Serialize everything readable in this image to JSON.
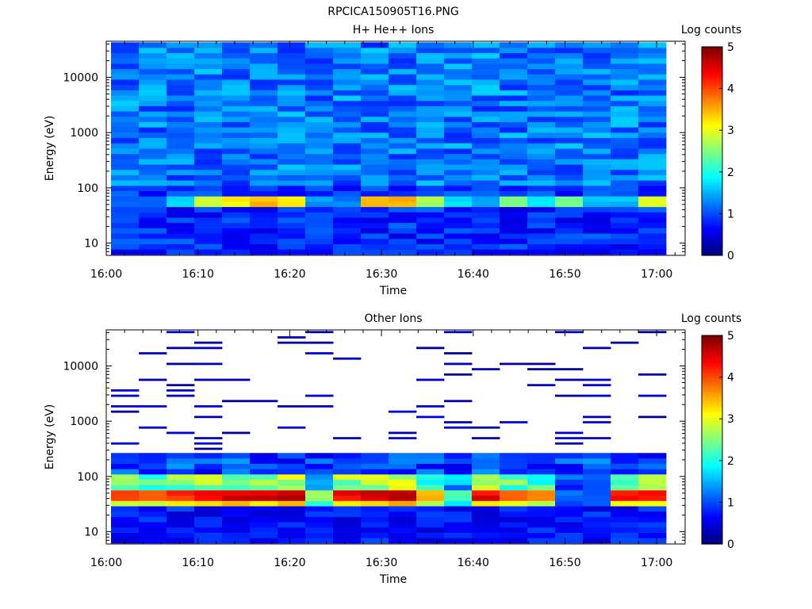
{
  "figure": {
    "title": "RPCICA150905T16.PNG"
  },
  "chart_data": [
    {
      "type": "heatmap",
      "title": "H+ He++ Ions",
      "xlabel": "Time",
      "ylabel": "Energy (eV)",
      "xticks": [
        "16:00",
        "16:10",
        "16:20",
        "16:30",
        "16:40",
        "16:50",
        "17:00"
      ],
      "xlim": [
        "16:00",
        "17:03"
      ],
      "yscale": "log",
      "yticks": [
        "10",
        "100",
        "1000",
        "10000"
      ],
      "ylim": [
        6,
        45000
      ],
      "colorbar": {
        "label": "Log counts",
        "ticks": [
          "0",
          "1",
          "2",
          "3",
          "4",
          "5"
        ],
        "range": [
          0,
          5
        ],
        "colormap": "jet"
      },
      "time_columns": 20,
      "energy_channels": 40,
      "peak_band": {
        "energy_range_eV": [
          42,
          65
        ],
        "levels": [
          1.2,
          1.1,
          1.6,
          2.9,
          3.2,
          3.4,
          3.2,
          1.4,
          1.3,
          3.5,
          3.6,
          2.7,
          1.8,
          1.5,
          2.6,
          1.9,
          2.4,
          1.6,
          1.5,
          3.1
        ]
      },
      "background_level": [
        0.4,
        1.6
      ],
      "empty_after": "17:03"
    },
    {
      "type": "heatmap",
      "title": "Other Ions",
      "xlabel": "Time",
      "ylabel": "Energy (eV)",
      "xticks": [
        "16:00",
        "16:10",
        "16:20",
        "16:30",
        "16:40",
        "16:50",
        "17:00"
      ],
      "xlim": [
        "16:00",
        "17:03"
      ],
      "yscale": "log",
      "yticks": [
        "10",
        "100",
        "1000",
        "10000"
      ],
      "ylim": [
        6,
        45000
      ],
      "colorbar": {
        "label": "Log counts",
        "ticks": [
          "0",
          "1",
          "2",
          "3",
          "4",
          "5"
        ],
        "range": [
          0,
          5
        ],
        "colormap": "jet"
      },
      "time_columns": 20,
      "energy_channels": 40,
      "peak_band": {
        "energy_range_eV": [
          35,
          60
        ],
        "levels": [
          4.1,
          3.8,
          4.2,
          4.4,
          4.5,
          4.6,
          4.7,
          2.6,
          4.4,
          4.6,
          4.8,
          3.4,
          2.3,
          4.4,
          4.0,
          3.8,
          1.2,
          1.0,
          4.3,
          4.4
        ]
      },
      "sparse_high_energy": true,
      "empty_after": "17:03"
    }
  ]
}
